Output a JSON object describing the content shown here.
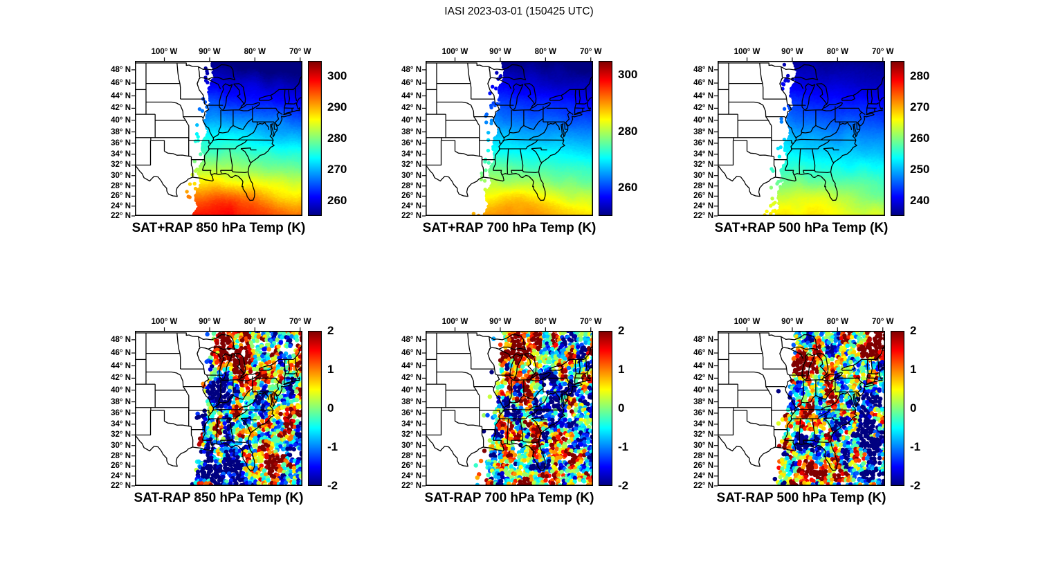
{
  "figure": {
    "title": "IASI 2023-03-01 (150425 UTC)"
  },
  "axes": {
    "x_tick_labels": [
      "100° W",
      "90° W",
      "80° W",
      "70° W"
    ],
    "x_tick_lons": [
      -100,
      -90,
      -80,
      -70
    ],
    "y_tick_labels": [
      "48° N",
      "46° N",
      "44° N",
      "42° N",
      "40° N",
      "38° N",
      "36° N",
      "34° N",
      "32° N",
      "30° N",
      "28° N",
      "26° N",
      "24° N",
      "22° N"
    ],
    "y_tick_lats": [
      48,
      46,
      44,
      42,
      40,
      38,
      36,
      34,
      32,
      30,
      28,
      26,
      24,
      22
    ],
    "lon_range": [
      -106.5,
      -69.5
    ],
    "lat_range": [
      22,
      49.3
    ]
  },
  "chart_data": [
    {
      "type": "scatter",
      "kind": "satellite-swath-map",
      "map_region": "eastern United States",
      "title": "SAT+RAP 850 hPa Temp (K)",
      "row": "top",
      "level_hPa": 850,
      "quantity": "SAT+RAP temperature",
      "units": "K",
      "colormap": "jet",
      "colorbar_ticks": [
        300,
        290,
        280,
        270,
        260
      ],
      "colorbar_range": [
        255,
        305
      ],
      "field": {
        "south_value_K": 296,
        "north_value_K": 254.5,
        "west_east_tilt_K": -1.6,
        "warm_blob": {
          "lon": -85,
          "lat": 24.5,
          "amp_K": 4.5,
          "sx_deg": 5,
          "sy_deg": 2.5
        }
      },
      "swath": {
        "west_edge_lon_at_22N": -93.4,
        "west_edge_lon_at_49N": -89.2
      }
    },
    {
      "type": "scatter",
      "kind": "satellite-swath-map",
      "map_region": "eastern United States",
      "title": "SAT+RAP 700 hPa Temp (K)",
      "row": "top",
      "level_hPa": 700,
      "quantity": "SAT+RAP temperature",
      "units": "K",
      "colormap": "jet",
      "colorbar_ticks": [
        300,
        280,
        260
      ],
      "colorbar_range": [
        250,
        305
      ],
      "field": {
        "south_value_K": 288,
        "north_value_K": 250.5,
        "west_east_tilt_K": -1.4,
        "warm_blob": {
          "lon": -84.5,
          "lat": 24.5,
          "amp_K": 4,
          "sx_deg": 5,
          "sy_deg": 2.5
        }
      },
      "swath": {
        "west_edge_lon_at_22N": -93.4,
        "west_edge_lon_at_49N": -89.2
      }
    },
    {
      "type": "scatter",
      "kind": "satellite-swath-map",
      "map_region": "eastern United States",
      "title": "SAT+RAP 500 hPa Temp (K)",
      "row": "top",
      "level_hPa": 500,
      "quantity": "SAT+RAP temperature",
      "units": "K",
      "colormap": "jet",
      "colorbar_ticks": [
        280,
        270,
        260,
        250,
        240
      ],
      "colorbar_range": [
        235,
        285
      ],
      "field": {
        "south_value_K": 266,
        "north_value_K": 236.5,
        "west_east_tilt_K": -1.2,
        "warm_blob": {
          "lon": -84,
          "lat": 25,
          "amp_K": 2.5,
          "sx_deg": 5,
          "sy_deg": 2.5
        }
      },
      "swath": {
        "west_edge_lon_at_22N": -93.4,
        "west_edge_lon_at_49N": -89.2
      }
    },
    {
      "type": "scatter",
      "kind": "satellite-swath-map",
      "map_region": "eastern United States",
      "title": "SAT-RAP 850 hPa Temp (K)",
      "row": "bottom",
      "level_hPa": 850,
      "quantity": "SAT-RAP temperature difference",
      "units": "K",
      "colormap": "jet",
      "colorbar_ticks": [
        2,
        1,
        0,
        -1,
        -2
      ],
      "colorbar_range": [
        -2,
        2
      ],
      "noise_amplitude_K": 2.2,
      "blobs": [
        {
          "lon": -85.5,
          "lat": 45.5,
          "amp_K": 2.2,
          "sx_deg": 2.5,
          "sy_deg": 1.6
        },
        {
          "lon": -88,
          "lat": 40,
          "amp_K": -2.4,
          "sx_deg": 3,
          "sy_deg": 2.2
        },
        {
          "lon": -87,
          "lat": 25,
          "amp_K": -2.6,
          "sx_deg": 4,
          "sy_deg": 2.4
        },
        {
          "lon": -77,
          "lat": 27,
          "amp_K": 1.8,
          "sx_deg": 2,
          "sy_deg": 3
        },
        {
          "lon": -72.5,
          "lat": 44,
          "amp_K": 1.2,
          "sx_deg": 2.5,
          "sy_deg": 2
        },
        {
          "lon": -75.5,
          "lat": 39.5,
          "amp_K": -1.5,
          "sx_deg": 2,
          "sy_deg": 1.8
        }
      ],
      "swath": {
        "west_edge_lon_at_22N": -93.4,
        "west_edge_lon_at_49N": -89.2
      }
    },
    {
      "type": "scatter",
      "kind": "satellite-swath-map",
      "map_region": "eastern United States",
      "title": "SAT-RAP 700 hPa Temp (K)",
      "row": "bottom",
      "level_hPa": 700,
      "quantity": "SAT-RAP temperature difference",
      "units": "K",
      "colormap": "jet",
      "colorbar_ticks": [
        2,
        1,
        0,
        -1,
        -2
      ],
      "colorbar_range": [
        -2,
        2
      ],
      "noise_amplitude_K": 2.2,
      "blobs": [
        {
          "lon": -85,
          "lat": 46.5,
          "amp_K": 2.3,
          "sx_deg": 3,
          "sy_deg": 1.5
        },
        {
          "lon": -79,
          "lat": 40,
          "amp_K": -2.2,
          "sx_deg": 2.5,
          "sy_deg": 3
        },
        {
          "lon": -86,
          "lat": 24.5,
          "amp_K": 2.0,
          "sx_deg": 4,
          "sy_deg": 2
        },
        {
          "lon": -73,
          "lat": 41,
          "amp_K": -1.5,
          "sx_deg": 2,
          "sy_deg": 2
        },
        {
          "lon": -90,
          "lat": 33,
          "amp_K": -1.2,
          "sx_deg": 2,
          "sy_deg": 3
        }
      ],
      "swath": {
        "west_edge_lon_at_22N": -93.4,
        "west_edge_lon_at_49N": -89.2
      }
    },
    {
      "type": "scatter",
      "kind": "satellite-swath-map",
      "map_region": "eastern United States",
      "title": "SAT-RAP 500 hPa Temp (K)",
      "row": "bottom",
      "level_hPa": 500,
      "quantity": "SAT-RAP temperature difference",
      "units": "K",
      "colormap": "jet",
      "colorbar_ticks": [
        2,
        1,
        0,
        -1,
        -2
      ],
      "colorbar_range": [
        -2,
        2
      ],
      "noise_amplitude_K": 2.2,
      "blobs": [
        {
          "lon": -87,
          "lat": 43.5,
          "amp_K": 2.6,
          "sx_deg": 3,
          "sy_deg": 2
        },
        {
          "lon": -71.5,
          "lat": 47,
          "amp_K": 2.0,
          "sx_deg": 2.5,
          "sy_deg": 1.5
        },
        {
          "lon": -74,
          "lat": 32,
          "amp_K": -2.4,
          "sx_deg": 3.5,
          "sy_deg": 4
        },
        {
          "lon": -84,
          "lat": 24.5,
          "amp_K": 1.8,
          "sx_deg": 3,
          "sy_deg": 1.5
        },
        {
          "lon": -88,
          "lat": 29.5,
          "amp_K": -1.6,
          "sx_deg": 2.5,
          "sy_deg": 2
        },
        {
          "lon": -69.5,
          "lat": 40,
          "amp_K": -1.8,
          "sx_deg": 2,
          "sy_deg": 3
        }
      ],
      "swath": {
        "west_edge_lon_at_22N": -93.4,
        "west_edge_lon_at_49N": -89.2
      }
    }
  ]
}
